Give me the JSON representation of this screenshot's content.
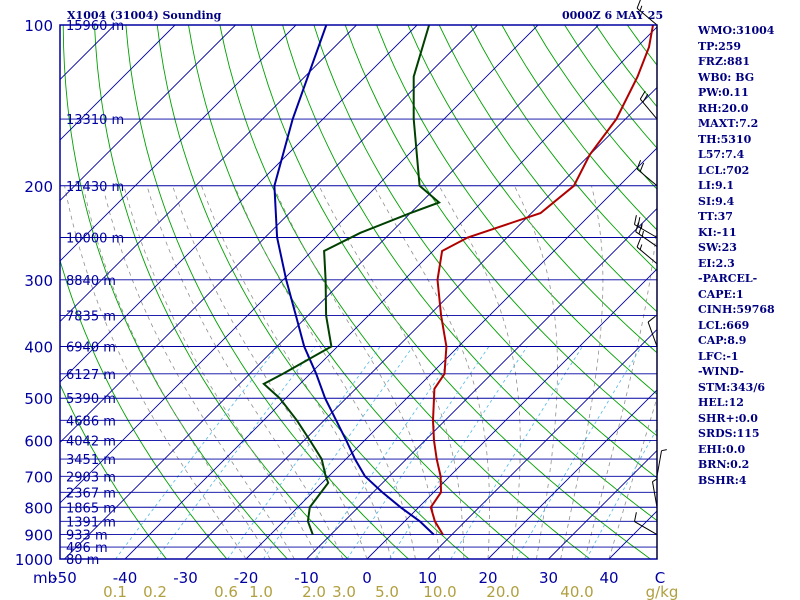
{
  "header": {
    "station": "X1004 (31004) Sounding",
    "time": "0000Z  6 MAY 25"
  },
  "stats": [
    "WMO:31004",
    "TP:259",
    "FRZ:881",
    "WB0: BG",
    "PW:0.11",
    "RH:20.0",
    "MAXT:7.2",
    "TH:5310",
    "L57:7.4",
    "LCL:702",
    "LI:9.1",
    "SI:9.4",
    "TT:37",
    "KI:-11",
    "SW:23",
    "EI:2.3",
    "-PARCEL-",
    "CAPE:1",
    "CINH:59768",
    "LCL:669",
    "CAP:8.9",
    "LFC:-1",
    "-WIND-",
    "STM:343/6",
    "HEL:12",
    "SHR+:0.0",
    "SRDS:115",
    "EHI:0.0",
    "BRN:0.2",
    "BSHR:4"
  ],
  "colors": {
    "frame": "#0000A0",
    "temperature": "#B00000",
    "dewpoint": "#004000",
    "parcel": "#0000A0",
    "dry_adiabat": "#00A000",
    "moist_adiabat": "#909090",
    "mixing_ratio": "#50B8E8",
    "isotherm": "#0000A0",
    "axis_text": "#0000A0",
    "mixing_text": "#B0A040"
  },
  "chart_data": {
    "type": "skew-t",
    "x_axis": {
      "unit_label": "mb",
      "range": [
        -50,
        50
      ],
      "ticks": [
        -50,
        -40,
        -30,
        -20,
        -10,
        0,
        10,
        20,
        30,
        40
      ],
      "tick_labels": [
        "-50",
        "-40",
        "-30",
        "-20",
        "-10",
        "0",
        "10",
        "20",
        "30",
        "40"
      ],
      "end_label": "C"
    },
    "y_axis": {
      "range": [
        100,
        1000
      ],
      "scale": "log",
      "pressure_labels": [
        100,
        200,
        300,
        400,
        500,
        600,
        700,
        800,
        900,
        1000
      ]
    },
    "height_labels": [
      {
        "p": 100,
        "label": "15960 m"
      },
      {
        "p": 150,
        "label": "13310 m"
      },
      {
        "p": 200,
        "label": "11430 m"
      },
      {
        "p": 250,
        "label": "10000 m"
      },
      {
        "p": 300,
        "label": "8840 m"
      },
      {
        "p": 350,
        "label": "7835 m"
      },
      {
        "p": 400,
        "label": "6940 m"
      },
      {
        "p": 450,
        "label": "6127 m"
      },
      {
        "p": 500,
        "label": "5390 m"
      },
      {
        "p": 550,
        "label": "4686 m"
      },
      {
        "p": 600,
        "label": "4042 m"
      },
      {
        "p": 650,
        "label": "3451 m"
      },
      {
        "p": 700,
        "label": "2903 m"
      },
      {
        "p": 750,
        "label": "2367 m"
      },
      {
        "p": 800,
        "label": "1865 m"
      },
      {
        "p": 850,
        "label": "1391 m"
      },
      {
        "p": 900,
        "label": "933 m"
      },
      {
        "p": 950,
        "label": "496 m"
      },
      {
        "p": 1000,
        "label": "80 m"
      }
    ],
    "mixing_ratio_labels": [
      "0.1",
      "0.2",
      "0.6",
      "1.0",
      "2.0",
      "3.0",
      "5.0",
      "10.0",
      "20.0",
      "40.0",
      "g/kg"
    ],
    "mixing_ratios": [
      0.1,
      0.2,
      0.6,
      1.0,
      2.0,
      3.0,
      5.0,
      10.0,
      20.0,
      40.0
    ],
    "temperature_profile": [
      [
        900,
        8.5
      ],
      [
        850,
        5.0
      ],
      [
        800,
        2.0
      ],
      [
        750,
        1.2
      ],
      [
        700,
        -1.5
      ],
      [
        650,
        -5.0
      ],
      [
        600,
        -8.5
      ],
      [
        550,
        -12.0
      ],
      [
        500,
        -15.5
      ],
      [
        480,
        -17.0
      ],
      [
        450,
        -17.8
      ],
      [
        400,
        -22.0
      ],
      [
        350,
        -28.0
      ],
      [
        300,
        -34.5
      ],
      [
        265,
        -38.5
      ],
      [
        250,
        -36.5
      ],
      [
        225,
        -28.5
      ],
      [
        200,
        -27.5
      ],
      [
        175,
        -30.0
      ],
      [
        150,
        -31.5
      ],
      [
        125,
        -35.0
      ],
      [
        110,
        -38.0
      ],
      [
        100,
        -41.0
      ]
    ],
    "dewpoint_profile": [
      [
        900,
        -13.0
      ],
      [
        850,
        -16.0
      ],
      [
        800,
        -18.0
      ],
      [
        720,
        -19.0
      ],
      [
        700,
        -20.5
      ],
      [
        650,
        -24.0
      ],
      [
        600,
        -29.0
      ],
      [
        550,
        -34.5
      ],
      [
        500,
        -41.0
      ],
      [
        470,
        -46.0
      ],
      [
        450,
        -44.5
      ],
      [
        400,
        -41.0
      ],
      [
        350,
        -47.0
      ],
      [
        300,
        -53.0
      ],
      [
        265,
        -58.0
      ],
      [
        245,
        -55.0
      ],
      [
        225,
        -50.0
      ],
      [
        215,
        -47.0
      ],
      [
        200,
        -53.0
      ],
      [
        150,
        -65.0
      ],
      [
        125,
        -72.0
      ],
      [
        100,
        -78.0
      ]
    ],
    "parcel_profile": [
      [
        900,
        7.0
      ],
      [
        850,
        2.5
      ],
      [
        800,
        -3.0
      ],
      [
        750,
        -8.5
      ],
      [
        700,
        -14.0
      ],
      [
        650,
        -18.5
      ],
      [
        600,
        -23.0
      ],
      [
        550,
        -28.0
      ],
      [
        500,
        -33.5
      ],
      [
        450,
        -39.0
      ],
      [
        400,
        -45.5
      ],
      [
        350,
        -52.0
      ],
      [
        300,
        -59.5
      ],
      [
        250,
        -68.0
      ],
      [
        200,
        -77.0
      ],
      [
        150,
        -85.0
      ],
      [
        100,
        -95.0
      ]
    ],
    "wind_barbs": [
      {
        "p": 100,
        "dir": 310,
        "spd": 15
      },
      {
        "p": 150,
        "dir": 320,
        "spd": 20
      },
      {
        "p": 200,
        "dir": 310,
        "spd": 20
      },
      {
        "p": 250,
        "dir": 300,
        "spd": 25
      },
      {
        "p": 260,
        "dir": 305,
        "spd": 25
      },
      {
        "p": 280,
        "dir": 310,
        "spd": 15
      },
      {
        "p": 400,
        "dir": 340,
        "spd": 10
      },
      {
        "p": 700,
        "dir": 10,
        "spd": 5
      },
      {
        "p": 800,
        "dir": 350,
        "spd": 5
      },
      {
        "p": 900,
        "dir": 300,
        "spd": 10
      }
    ]
  }
}
